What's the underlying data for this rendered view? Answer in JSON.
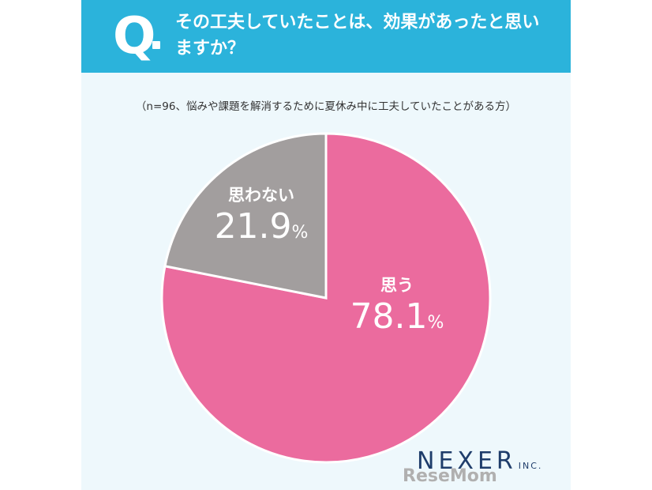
{
  "header": {
    "q_mark": "Q",
    "question": "その工夫していたことは、効果があったと思いますか？"
  },
  "sample_note": "（n=96、悩みや課題を解消するために夏休み中に工夫していたことがある方）",
  "chart_data": {
    "type": "pie",
    "title": "その工夫していたことは、効果があったと思いますか？",
    "categories": [
      "思う",
      "思わない"
    ],
    "values": [
      78.1,
      21.9
    ],
    "colors": [
      "#eb6b9e",
      "#a29e9e"
    ],
    "value_labels": [
      "78.1",
      "21.9"
    ],
    "unit": "%",
    "legend": "none"
  },
  "logo": {
    "text": "NEXER",
    "suffix": "INC."
  },
  "watermark": "ReseMom"
}
